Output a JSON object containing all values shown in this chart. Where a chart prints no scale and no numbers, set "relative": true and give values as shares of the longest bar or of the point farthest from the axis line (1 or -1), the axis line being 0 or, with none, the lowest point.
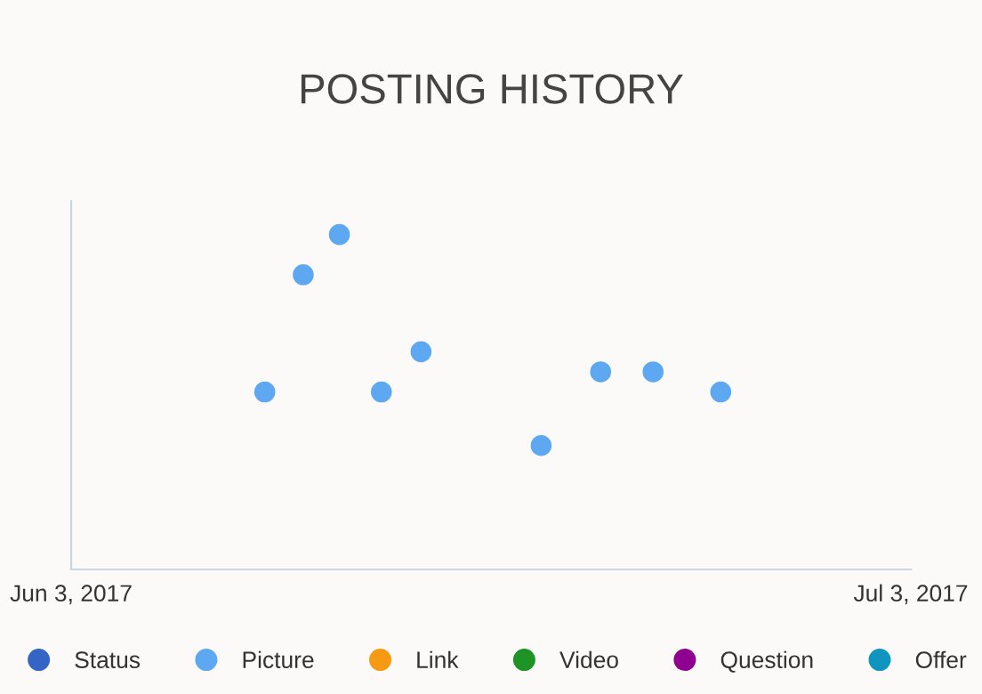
{
  "chart_data": {
    "type": "scatter",
    "title": "POSTING HISTORY",
    "relative": true,
    "legend": "bottom",
    "grid": false,
    "marker": "circle",
    "xlim": [
      "2017-06-03",
      "2017-07-03"
    ],
    "xticks": [
      {
        "value": "2017-06-03",
        "label": "Jun 3, 2017"
      },
      {
        "value": "2017-07-03",
        "label": "Jul 3, 2017"
      }
    ],
    "series": [
      {
        "name": "Status",
        "color": "#3565c4"
      },
      {
        "name": "Picture",
        "color": "#5ea8f2",
        "x": [
          "2017-06-09T22:00",
          "2017-06-11T07:00",
          "2017-06-12T14:00",
          "2017-06-14T02:00",
          "2017-06-15T12:00",
          "2017-06-19T19:00",
          "2017-06-21T22:00",
          "2017-06-23T19:00",
          "2017-06-26T05:00"
        ],
        "values": [
          0.53,
          0.88,
          1,
          0.53,
          0.65,
          0.37,
          0.59,
          0.59,
          0.53
        ]
      },
      {
        "name": "Link",
        "color": "#f59a12"
      },
      {
        "name": "Video",
        "color": "#1e9427"
      },
      {
        "name": "Question",
        "color": "#900090"
      },
      {
        "name": "Offer",
        "color": "#0f95bf"
      }
    ]
  }
}
